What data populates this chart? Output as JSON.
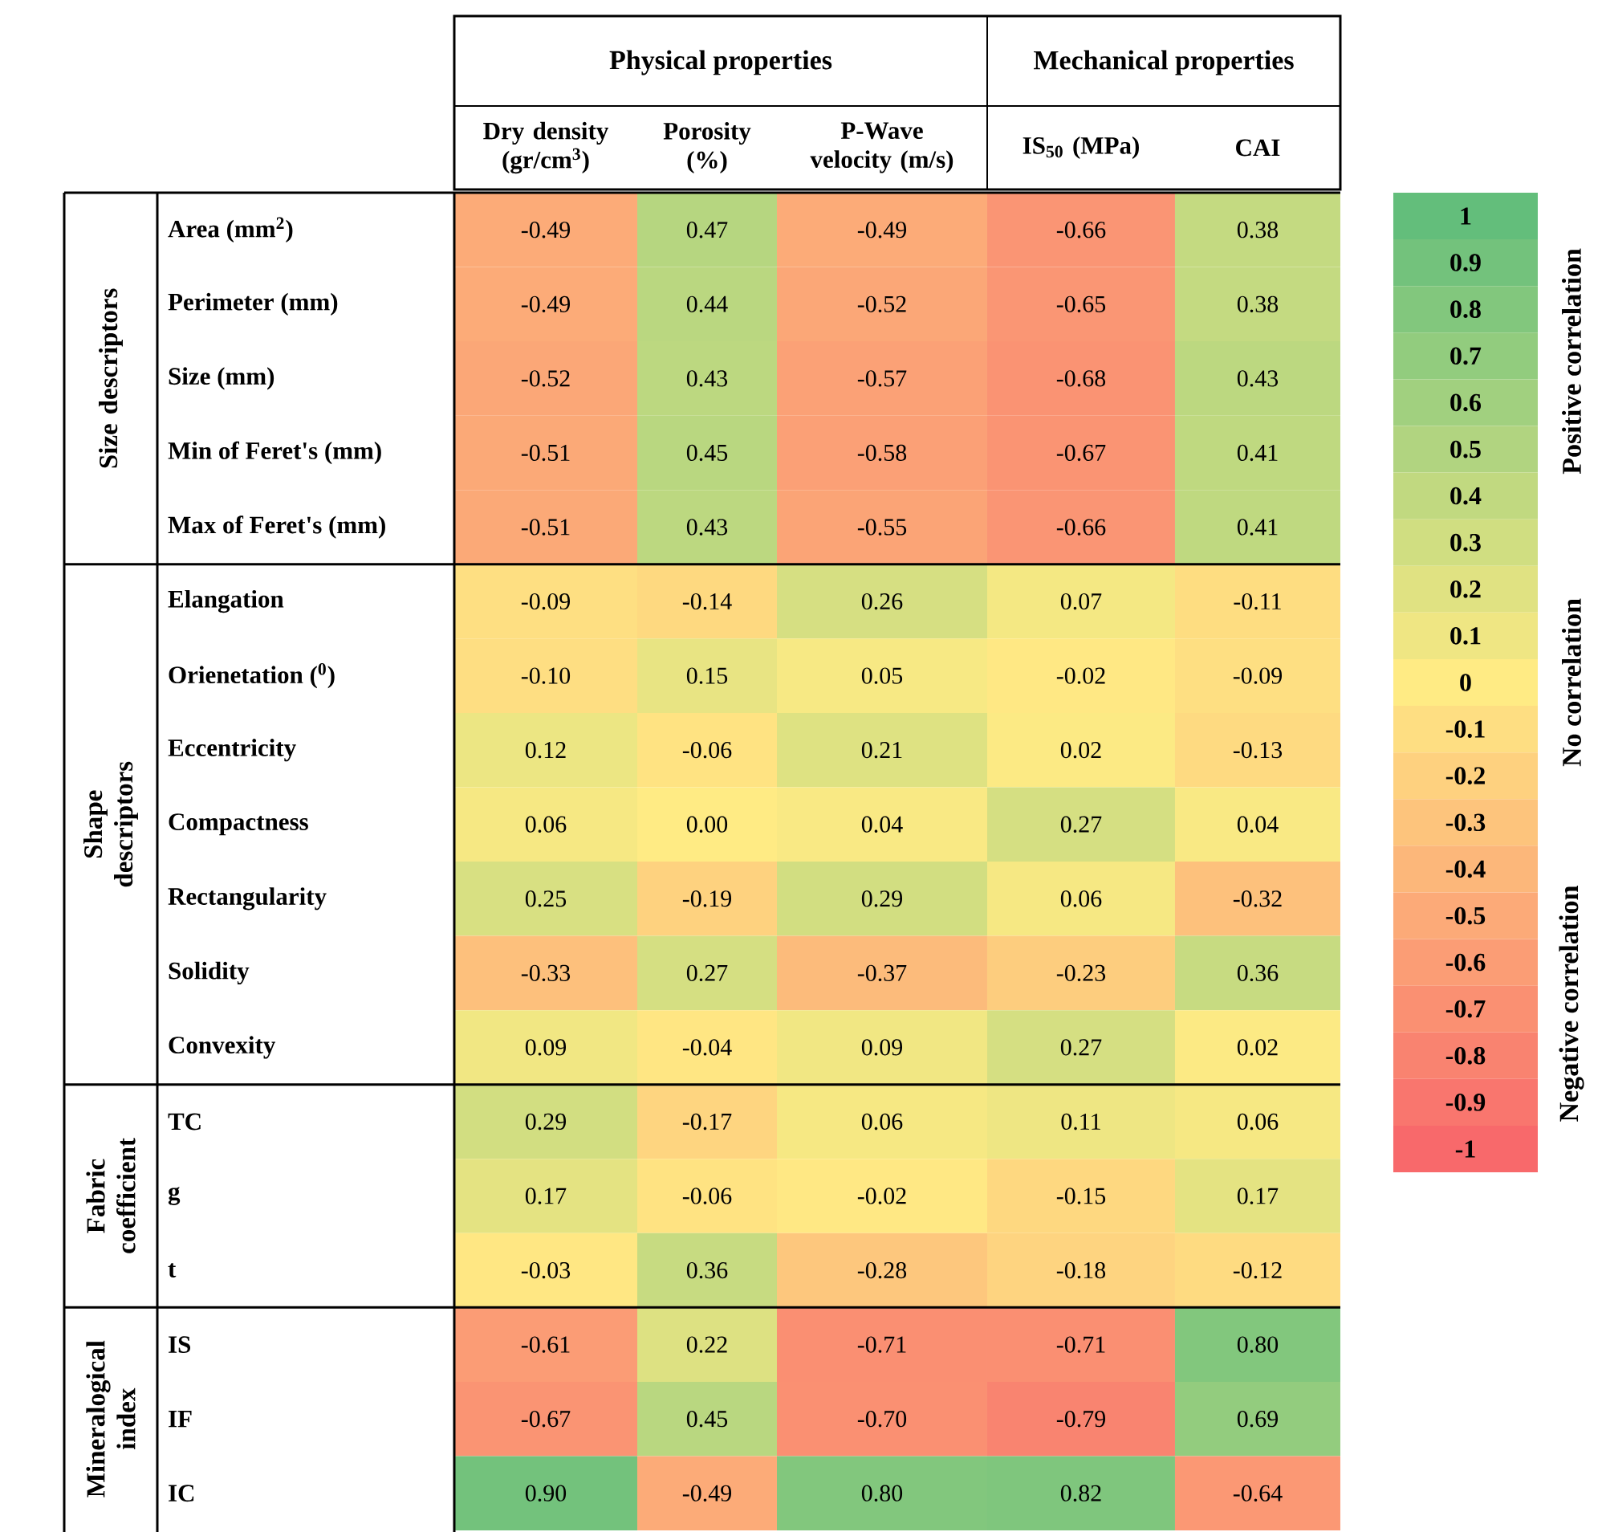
{
  "chart_data": {
    "type": "heatmap",
    "categories": [
      "Dry density (gr/cm$^{3}$)",
      "Porosity (%)",
      "P-Wave velocity (m/s)",
      "IS$_{50}$ (MPa)",
      "CAI"
    ],
    "y_categories": [
      "Area (mm$^{2}$)",
      "Perimeter (mm)",
      "Size (mm)",
      "Min of Feret's (mm)",
      "Max of Feret's (mm)",
      "Elangation",
      "Orienetation ($^{0}$)",
      "Eccentricity",
      "Compactness",
      "Rectangularity",
      "Solidity",
      "Convexity",
      "TC",
      "g",
      "t",
      "IS",
      "IF",
      "IC"
    ],
    "cells": [
      [
        -0.49,
        0.47,
        -0.49,
        -0.66,
        0.38
      ],
      [
        -0.49,
        0.44,
        -0.52,
        -0.65,
        0.38
      ],
      [
        -0.52,
        0.43,
        -0.57,
        -0.68,
        0.43
      ],
      [
        -0.51,
        0.45,
        -0.58,
        -0.67,
        0.41
      ],
      [
        -0.51,
        0.43,
        -0.55,
        -0.66,
        0.41
      ],
      [
        -0.09,
        -0.14,
        0.26,
        0.07,
        -0.11
      ],
      [
        -0.1,
        0.15,
        0.05,
        -0.02,
        -0.09
      ],
      [
        0.12,
        -0.06,
        0.21,
        0.02,
        -0.13
      ],
      [
        0.06,
        0.0,
        0.04,
        0.27,
        0.04
      ],
      [
        0.25,
        -0.19,
        0.29,
        0.06,
        -0.32
      ],
      [
        -0.33,
        0.27,
        -0.37,
        -0.23,
        0.36
      ],
      [
        0.09,
        -0.04,
        0.09,
        0.27,
        0.02
      ],
      [
        0.29,
        -0.17,
        0.06,
        0.11,
        0.06
      ],
      [
        0.17,
        -0.06,
        -0.02,
        -0.15,
        0.17
      ],
      [
        -0.03,
        0.36,
        -0.28,
        -0.18,
        -0.12
      ],
      [
        -0.61,
        0.22,
        -0.71,
        -0.71,
        0.8
      ],
      [
        -0.67,
        0.45,
        -0.7,
        -0.79,
        0.69
      ],
      [
        0.9,
        -0.49,
        0.8,
        0.82,
        -0.64
      ]
    ],
    "cell_labels": [
      [
        "-0.49",
        "0.47",
        "-0.49",
        "-0.66",
        "0.38"
      ],
      [
        "-0.49",
        "0.44",
        "-0.52",
        "-0.65",
        "0.38"
      ],
      [
        "-0.52",
        "0.43",
        "-0.57",
        "-0.68",
        "0.43"
      ],
      [
        "-0.51",
        "0.45",
        "-0.58",
        "-0.67",
        "0.41"
      ],
      [
        "-0.51",
        "0.43",
        "-0.55",
        "-0.66",
        "0.41"
      ],
      [
        "-0.09",
        "-0.14",
        "0.26",
        "0.07",
        "-0.11"
      ],
      [
        "-0.10",
        "0.15",
        "0.05",
        "-0.02",
        "-0.09"
      ],
      [
        "0.12",
        "-0.06",
        "0.21",
        "0.02",
        "-0.13"
      ],
      [
        "0.06",
        "0.00",
        "0.04",
        "0.27",
        "0.04"
      ],
      [
        "0.25",
        "-0.19",
        "0.29",
        "0.06",
        "-0.32"
      ],
      [
        "-0.33",
        "0.27",
        "-0.37",
        "-0.23",
        "0.36"
      ],
      [
        "0.09",
        "-0.04",
        "0.09",
        "0.27",
        "0.02"
      ],
      [
        "0.29",
        "-0.17",
        "0.06",
        "0.11",
        "0.06"
      ],
      [
        "0.17",
        "-0.06",
        "-0.02",
        "-0.15",
        "0.17"
      ],
      [
        "-0.03",
        "0.36",
        "-0.28",
        "-0.18",
        "-0.12"
      ],
      [
        "-0.61",
        "0.22",
        "-0.71",
        "-0.71",
        "0.80"
      ],
      [
        "-0.67",
        "0.45",
        "-0.70",
        "-0.79",
        "0.69"
      ],
      [
        "0.90",
        "-0.49",
        "0.80",
        "0.82",
        "-0.64"
      ]
    ],
    "clim": [
      -1,
      1
    ],
    "cticks": [
      1,
      0.9,
      0.8,
      0.7,
      0.6,
      0.5,
      0.4,
      0.3,
      0.2,
      0.1,
      0,
      -0.1,
      -0.2,
      -0.3,
      -0.4,
      -0.5,
      -0.6,
      -0.7,
      -0.8,
      -0.9,
      -1
    ],
    "annotations": [
      "Physical properties",
      "Mechanical properties",
      "Size descriptors",
      "Shape descriptors",
      "Fabric coefficient",
      "Mineralogical index",
      "Positive correlation",
      "No correlation",
      "Negative correlation"
    ]
  }
}
